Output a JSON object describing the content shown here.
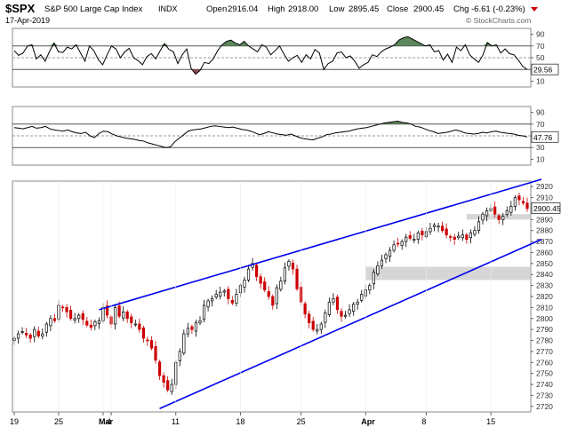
{
  "header": {
    "symbol": "$SPX",
    "name": "S&P 500 Large Cap Index",
    "exchange": "INDX",
    "date": "17-Apr-2019",
    "open_label": "Open",
    "open": "2916.04",
    "high_label": "High",
    "high": "2918.00",
    "low_label": "Low",
    "low": "2895.45",
    "close_label": "Close",
    "close": "2900.45",
    "chg_label": "Chg",
    "chg": "-6.61 (-0.23%)",
    "chg_arrow": "down-triangle-icon",
    "watermark": "© StockCharts.com"
  },
  "colors": {
    "up_candle": "#000000",
    "down_candle": "#cc0000",
    "trendline": "#0000ee",
    "overbought_fill": "#4a7a4a",
    "oversold_fill": "#8a3a3a",
    "gap_box": "#c8c8c8",
    "chg_negative": "#cc0000"
  },
  "chart_data": [
    {
      "type": "line",
      "title": "RSI",
      "ylim": [
        0,
        100
      ],
      "yticks": [
        "90",
        "70",
        "50",
        "30",
        "10"
      ],
      "reference_lines": [
        30,
        50,
        70
      ],
      "last_value": "29.56",
      "series": [
        {
          "values": [
            62,
            54,
            58,
            70,
            72,
            48,
            55,
            44,
            61,
            75,
            60,
            59,
            68,
            65,
            72,
            58,
            44,
            70,
            62,
            47,
            38,
            55,
            70,
            65,
            50,
            60,
            66,
            50,
            45,
            38,
            52,
            57,
            48,
            62,
            74,
            64,
            60,
            40,
            55,
            65,
            32,
            22,
            28,
            42,
            40,
            48,
            62,
            72,
            78,
            80,
            75,
            72,
            78,
            70,
            65,
            60,
            72,
            68,
            55,
            62,
            70,
            56,
            44,
            50,
            54,
            42,
            55,
            48,
            64,
            58,
            30,
            40,
            44,
            58,
            60,
            50,
            53,
            44,
            32,
            38,
            42,
            55,
            52,
            60,
            65,
            68,
            72,
            80,
            84,
            86,
            82,
            78,
            74,
            70,
            72,
            60,
            62,
            46,
            56,
            42,
            68,
            62,
            72,
            55,
            48,
            42,
            55,
            76,
            70,
            72,
            58,
            65,
            57,
            55,
            46,
            35,
            30
          ]
        }
      ]
    },
    {
      "type": "line",
      "title": "Stochastic",
      "ylim": [
        0,
        100
      ],
      "yticks": [
        "90",
        "70",
        "50",
        "30",
        "10"
      ],
      "reference_lines": [
        30,
        50,
        70
      ],
      "last_value": "47.76",
      "series": [
        {
          "values": [
            64,
            63,
            62,
            64,
            66,
            63,
            64,
            66,
            62,
            60,
            59,
            58,
            60,
            57,
            55,
            54,
            56,
            50,
            47,
            54,
            58,
            57,
            53,
            50,
            48,
            46,
            45,
            44,
            42,
            41,
            38,
            36,
            34,
            32,
            30,
            31,
            40,
            46,
            52,
            58,
            60,
            61,
            62,
            64,
            66,
            67,
            66,
            65,
            64,
            65,
            63,
            61,
            60,
            58,
            55,
            52,
            54,
            57,
            55,
            53,
            52,
            51,
            53,
            50,
            47,
            45,
            44,
            43,
            46,
            48,
            52,
            53,
            55,
            56,
            57,
            58,
            60,
            62,
            63,
            64,
            66,
            68,
            70,
            72,
            73,
            74,
            75,
            73,
            72,
            70,
            66,
            65,
            62,
            59,
            57,
            54,
            55,
            56,
            58,
            60,
            58,
            55,
            54,
            53,
            54,
            56,
            55,
            57,
            58,
            56,
            55,
            54,
            53,
            51,
            50,
            48
          ]
        }
      ]
    },
    {
      "type": "candlestick",
      "title": "",
      "ylim": [
        2715,
        2925
      ],
      "yticks": [
        2920,
        2910,
        2900,
        2890,
        2880,
        2870,
        2860,
        2850,
        2840,
        2830,
        2820,
        2810,
        2800,
        2790,
        2780,
        2770,
        2760,
        2750,
        2740,
        2730,
        2720
      ],
      "xticks": [
        {
          "label": "19",
          "x": 0
        },
        {
          "label": "25",
          "x": 11
        },
        {
          "label": "Mar",
          "x": 22
        },
        {
          "label": "4",
          "x": 24
        },
        {
          "label": "11",
          "x": 40
        },
        {
          "label": "18",
          "x": 56
        },
        {
          "label": "25",
          "x": 71
        },
        {
          "label": "Apr",
          "x": 87
        },
        {
          "label": "8",
          "x": 102
        },
        {
          "label": "15",
          "x": 118
        }
      ],
      "last_value": "2900.45",
      "series": [
        {
          "values": [
            2782,
            2786,
            2788,
            2785,
            2782,
            2790,
            2784,
            2786,
            2795,
            2800,
            2798,
            2812,
            2810,
            2806,
            2800,
            2800,
            2803,
            2799,
            2794,
            2792,
            2797,
            2798,
            2810,
            2803,
            2795,
            2810,
            2802,
            2806,
            2800,
            2796,
            2795,
            2790,
            2782,
            2780,
            2773,
            2762,
            2748,
            2742,
            2735,
            2740,
            2760,
            2770,
            2786,
            2791,
            2790,
            2796,
            2798,
            2812,
            2816,
            2818,
            2822,
            2824,
            2825,
            2818,
            2814,
            2822,
            2830,
            2835,
            2845,
            2850,
            2838,
            2832,
            2826,
            2820,
            2812,
            2828,
            2834,
            2846,
            2852,
            2845,
            2827,
            2815,
            2804,
            2796,
            2790,
            2790,
            2795,
            2805,
            2815,
            2818,
            2808,
            2802,
            2803,
            2808,
            2813,
            2815,
            2822,
            2826,
            2830,
            2842,
            2848,
            2853,
            2858,
            2862,
            2867,
            2868,
            2870,
            2874,
            2873,
            2872,
            2878,
            2876,
            2879,
            2882,
            2885,
            2884,
            2880,
            2876,
            2874,
            2872,
            2875,
            2876,
            2872,
            2878,
            2880,
            2888,
            2895,
            2898,
            2900,
            2895,
            2890,
            2893,
            2898,
            2902,
            2910,
            2908,
            2905,
            2900
          ]
        }
      ],
      "annotations": [
        "upper trendline",
        "lower trendline",
        "gap 2835-2847",
        "gap 2890-2895"
      ]
    }
  ]
}
